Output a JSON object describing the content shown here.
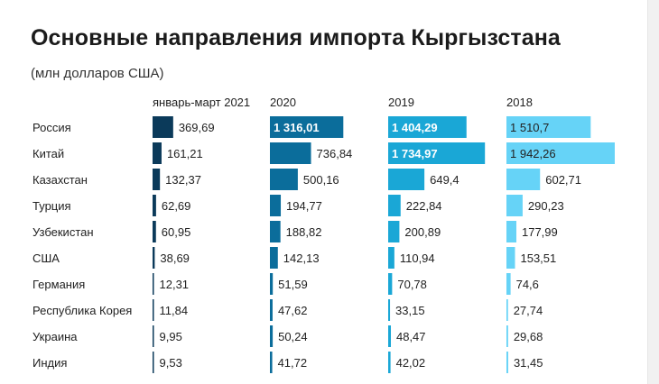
{
  "title": "Основные направления импорта Кыргызстана",
  "subtitle": "(млн долларов США)",
  "colors": {
    "col0": "#0b3a5a",
    "col1": "#0b6d9b",
    "col2": "#1aa7d6",
    "col3": "#66d3f7",
    "text": "#222222",
    "label_light": "#ffffff"
  },
  "chart_data": {
    "type": "bar",
    "title": "Основные направления импорта Кыргызстана",
    "subtitle": "(млн долларов США)",
    "categories": [
      "Россия",
      "Китай",
      "Казахстан",
      "Турция",
      "Узбекистан",
      "США",
      "Германия",
      "Республика Корея",
      "Украина",
      "Индия"
    ],
    "series": [
      {
        "name": "январь-март 2021",
        "values": [
          369.69,
          161.21,
          132.37,
          62.69,
          60.95,
          38.69,
          12.31,
          11.84,
          9.95,
          9.53
        ],
        "labels": [
          "369,69",
          "161,21",
          "132,37",
          "62,69",
          "60,95",
          "38,69",
          "12,31",
          "11,84",
          "9,95",
          "9,53"
        ]
      },
      {
        "name": "2020",
        "values": [
          1316.01,
          736.84,
          500.16,
          194.77,
          188.82,
          142.13,
          51.59,
          47.62,
          50.24,
          41.72
        ],
        "labels": [
          "1 316,01",
          "736,84",
          "500,16",
          "194,77",
          "188,82",
          "142,13",
          "51,59",
          "47,62",
          "50,24",
          "41,72"
        ]
      },
      {
        "name": "2019",
        "values": [
          1404.29,
          1734.97,
          649.4,
          222.84,
          200.89,
          110.94,
          70.78,
          33.15,
          48.47,
          42.02
        ],
        "labels": [
          "1 404,29",
          "1 734,97",
          "649,4",
          "222,84",
          "200,89",
          "110,94",
          "70,78",
          "33,15",
          "48,47",
          "42,02"
        ]
      },
      {
        "name": "2018",
        "values": [
          1510.7,
          1942.26,
          602.71,
          290.23,
          177.99,
          153.51,
          74.6,
          27.74,
          29.68,
          31.45
        ],
        "labels": [
          "1 510,7",
          "1 942,26",
          "602,71",
          "290,23",
          "177,99",
          "153,51",
          "74,6",
          "27,74",
          "29,68",
          "31,45"
        ]
      }
    ],
    "xlim": [
      0,
      1942.26
    ]
  }
}
